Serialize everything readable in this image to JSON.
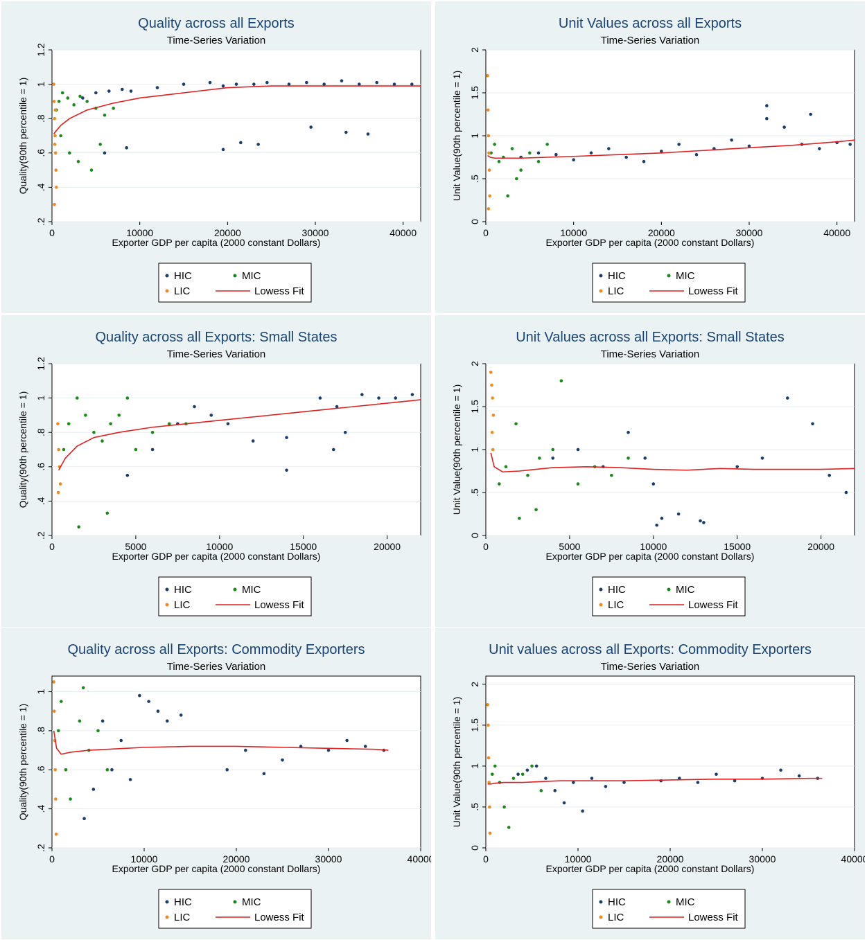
{
  "colors": {
    "HIC": "#1a3f6a",
    "MIC": "#1a8a1a",
    "LIC": "#f08a1c",
    "fit": "#e01f1f",
    "panel_bg": "#eaf2f3"
  },
  "chart_data": [
    {
      "type": "scatter",
      "title": "Quality across all Exports",
      "subtitle": "Time-Series Variation",
      "xlabel": "Exporter GDP per capita (2000 constant Dollars)",
      "ylabel": "Quality(90th percentile = 1)",
      "xlim": [
        0,
        42000
      ],
      "ylim": [
        0.2,
        1.2
      ],
      "xticks": [
        0,
        10000,
        20000,
        30000,
        40000
      ],
      "xtick_labels": [
        "0",
        "10000",
        "20000",
        "30000",
        "40000"
      ],
      "yticks": [
        0.2,
        0.4,
        0.6,
        0.8,
        1.0,
        1.2
      ],
      "ytick_labels": [
        ".2",
        ".4",
        ".6",
        ".8",
        "1",
        "1.2"
      ],
      "grid": true,
      "legend_position": "bottom",
      "legend": [
        "HIC",
        "MIC",
        "LIC",
        "Lowess Fit"
      ],
      "series": [
        {
          "name": "HIC",
          "x": [
            3500,
            5000,
            6500,
            8000,
            9000,
            12000,
            15000,
            18000,
            19500,
            21000,
            23000,
            24500,
            27000,
            29000,
            31000,
            33000,
            35000,
            37000,
            39000,
            41000,
            6000,
            8500,
            19500,
            21500,
            23500,
            29500,
            33500,
            36000
          ],
          "y": [
            0.92,
            0.95,
            0.96,
            0.97,
            0.96,
            0.98,
            1.0,
            1.01,
            0.99,
            1.0,
            1.0,
            1.01,
            1.0,
            1.01,
            1.0,
            1.02,
            1.0,
            1.01,
            1.0,
            1.0,
            0.6,
            0.63,
            0.62,
            0.66,
            0.65,
            0.75,
            0.72,
            0.71
          ]
        },
        {
          "name": "MIC",
          "x": [
            500,
            800,
            1200,
            1800,
            2500,
            3200,
            4000,
            5000,
            6000,
            7000,
            1000,
            2000,
            3000,
            4500,
            5500
          ],
          "y": [
            0.85,
            0.9,
            0.95,
            0.92,
            0.88,
            0.93,
            0.9,
            0.86,
            0.82,
            0.86,
            0.7,
            0.6,
            0.55,
            0.5,
            0.65
          ]
        },
        {
          "name": "LIC",
          "x": [
            200,
            250,
            300,
            350,
            400,
            450,
            500,
            280,
            320,
            380
          ],
          "y": [
            1.0,
            0.9,
            0.8,
            0.7,
            0.6,
            0.5,
            0.4,
            0.3,
            0.65,
            0.85
          ]
        },
        {
          "name": "Lowess Fit",
          "x": [
            200,
            500,
            1000,
            2000,
            4000,
            7000,
            10000,
            15000,
            20000,
            25000,
            30000,
            35000,
            40000,
            42000
          ],
          "y": [
            0.71,
            0.73,
            0.76,
            0.8,
            0.85,
            0.89,
            0.92,
            0.95,
            0.98,
            0.99,
            0.99,
            0.99,
            0.99,
            0.99
          ]
        }
      ]
    },
    {
      "type": "scatter",
      "title": "Unit Values across all Exports",
      "subtitle": "Time-Series Variation",
      "xlabel": "Exporter GDP per capita (2000 constant Dollars)",
      "ylabel": "Unit Value(90th percentile = 1)",
      "xlim": [
        0,
        42000
      ],
      "ylim": [
        0,
        2
      ],
      "xticks": [
        0,
        10000,
        20000,
        30000,
        40000
      ],
      "xtick_labels": [
        "0",
        "10000",
        "20000",
        "30000",
        "40000"
      ],
      "yticks": [
        0,
        0.5,
        1,
        1.5,
        2
      ],
      "ytick_labels": [
        "0",
        ".5",
        "1",
        "1.5",
        "2"
      ],
      "grid": true,
      "legend_position": "bottom",
      "legend": [
        "HIC",
        "MIC",
        "LIC",
        "Lowess Fit"
      ],
      "series": [
        {
          "name": "HIC",
          "x": [
            4000,
            6000,
            8000,
            10000,
            12000,
            14000,
            16000,
            18000,
            20000,
            22000,
            24000,
            26000,
            28000,
            30000,
            32000,
            34000,
            36000,
            38000,
            40000,
            41500,
            32000,
            37000
          ],
          "y": [
            0.75,
            0.8,
            0.78,
            0.72,
            0.8,
            0.85,
            0.75,
            0.7,
            0.82,
            0.9,
            0.78,
            0.85,
            0.95,
            0.88,
            1.2,
            1.1,
            0.9,
            0.85,
            0.92,
            0.9,
            1.35,
            1.25
          ]
        },
        {
          "name": "MIC",
          "x": [
            600,
            1000,
            1500,
            2000,
            3000,
            4000,
            5000,
            6000,
            7000,
            2500,
            3500
          ],
          "y": [
            0.8,
            0.9,
            0.7,
            0.75,
            0.85,
            0.6,
            0.8,
            0.7,
            0.9,
            0.3,
            0.5
          ]
        },
        {
          "name": "LIC",
          "x": [
            200,
            250,
            300,
            350,
            400,
            450,
            300
          ],
          "y": [
            1.7,
            1.3,
            1.0,
            0.8,
            0.6,
            0.3,
            0.15
          ]
        },
        {
          "name": "Lowess Fit",
          "x": [
            200,
            500,
            1000,
            2000,
            4000,
            7000,
            10000,
            15000,
            20000,
            25000,
            30000,
            35000,
            40000,
            42000
          ],
          "y": [
            0.77,
            0.75,
            0.74,
            0.74,
            0.74,
            0.75,
            0.76,
            0.78,
            0.8,
            0.83,
            0.86,
            0.89,
            0.93,
            0.95
          ]
        }
      ]
    },
    {
      "type": "scatter",
      "title": "Quality across all Exports: Small States",
      "subtitle": "Time-Series Variation",
      "xlabel": "Exporter GDP per capita (2000 constant Dollars)",
      "ylabel": "Quality(90th percentile = 1)",
      "xlim": [
        0,
        22000
      ],
      "ylim": [
        0.2,
        1.2
      ],
      "xticks": [
        0,
        5000,
        10000,
        15000,
        20000
      ],
      "xtick_labels": [
        "0",
        "5000",
        "10000",
        "15000",
        "20000"
      ],
      "yticks": [
        0.2,
        0.4,
        0.6,
        0.8,
        1.0,
        1.2
      ],
      "ytick_labels": [
        ".2",
        ".4",
        ".6",
        ".8",
        "1",
        "1.2"
      ],
      "grid": true,
      "legend_position": "bottom",
      "legend": [
        "HIC",
        "MIC",
        "LIC",
        "Lowess Fit"
      ],
      "series": [
        {
          "name": "HIC",
          "x": [
            4500,
            6000,
            7500,
            8500,
            9500,
            10500,
            12000,
            14000,
            16000,
            17000,
            18500,
            19500,
            20500,
            21500,
            14000,
            16800,
            17500
          ],
          "y": [
            0.55,
            0.7,
            0.85,
            0.95,
            0.9,
            0.85,
            0.75,
            0.58,
            1.0,
            0.95,
            1.02,
            1.0,
            1.0,
            1.02,
            0.77,
            0.7,
            0.8
          ]
        },
        {
          "name": "MIC",
          "x": [
            700,
            1000,
            1500,
            2000,
            2500,
            3000,
            3500,
            4000,
            4500,
            5000,
            6000,
            7000,
            8000,
            1600,
            3300
          ],
          "y": [
            0.7,
            0.85,
            1.0,
            0.9,
            0.8,
            0.75,
            0.85,
            0.9,
            1.0,
            0.7,
            0.8,
            0.85,
            0.85,
            0.25,
            0.33
          ]
        },
        {
          "name": "LIC",
          "x": [
            350,
            400,
            450,
            500,
            380
          ],
          "y": [
            0.85,
            0.7,
            0.6,
            0.5,
            0.45
          ]
        },
        {
          "name": "Lowess Fit",
          "x": [
            400,
            800,
            1500,
            2500,
            4000,
            6000,
            8000,
            10000,
            12000,
            14000,
            16000,
            18000,
            20000,
            22000
          ],
          "y": [
            0.58,
            0.65,
            0.72,
            0.77,
            0.8,
            0.83,
            0.85,
            0.87,
            0.89,
            0.91,
            0.93,
            0.95,
            0.97,
            0.99
          ]
        }
      ]
    },
    {
      "type": "scatter",
      "title": "Unit Values across all Exports: Small States",
      "subtitle": "Time-Series Variation",
      "xlabel": "Exporter GDP per capita (2000 constant Dollars)",
      "ylabel": "Unit Value(90th percentile = 1)",
      "xlim": [
        0,
        22000
      ],
      "ylim": [
        0,
        2
      ],
      "xticks": [
        0,
        5000,
        10000,
        15000,
        20000
      ],
      "xtick_labels": [
        "0",
        "5000",
        "10000",
        "15000",
        "20000"
      ],
      "yticks": [
        0,
        0.5,
        1,
        1.5,
        2
      ],
      "ytick_labels": [
        "0",
        ".5",
        "1",
        "1.5",
        "2"
      ],
      "grid": true,
      "legend_position": "bottom",
      "legend": [
        "HIC",
        "MIC",
        "LIC",
        "Lowess Fit"
      ],
      "series": [
        {
          "name": "HIC",
          "x": [
            4000,
            5500,
            7000,
            8500,
            9500,
            10000,
            10500,
            11500,
            13000,
            15000,
            16500,
            18000,
            19500,
            20500,
            21500,
            10200,
            12800
          ],
          "y": [
            0.9,
            1.0,
            0.8,
            1.2,
            0.9,
            0.6,
            0.2,
            0.25,
            0.15,
            0.8,
            0.9,
            1.6,
            1.3,
            0.7,
            0.5,
            0.12,
            0.17
          ]
        },
        {
          "name": "MIC",
          "x": [
            800,
            1200,
            1800,
            2500,
            3200,
            4000,
            4500,
            5500,
            6500,
            7500,
            8500,
            2000,
            3000
          ],
          "y": [
            0.6,
            0.8,
            1.3,
            0.7,
            0.9,
            1.0,
            1.8,
            0.6,
            0.8,
            0.7,
            0.9,
            0.2,
            0.3
          ]
        },
        {
          "name": "LIC",
          "x": [
            300,
            350,
            400,
            450,
            380,
            420
          ],
          "y": [
            1.9,
            1.75,
            1.6,
            1.4,
            1.2,
            1.0
          ]
        },
        {
          "name": "Lowess Fit",
          "x": [
            300,
            500,
            1000,
            2000,
            4000,
            6000,
            8000,
            10000,
            12000,
            14000,
            16000,
            18000,
            20000,
            22000
          ],
          "y": [
            0.96,
            0.8,
            0.74,
            0.75,
            0.79,
            0.8,
            0.79,
            0.77,
            0.76,
            0.78,
            0.77,
            0.77,
            0.77,
            0.78
          ]
        }
      ]
    },
    {
      "type": "scatter",
      "title": "Quality across all Exports: Commodity Exporters",
      "subtitle": "Time-Series Variation",
      "xlabel": "Exporter GDP per capita (2000 constant Dollars)",
      "ylabel": "Quality(90th percentile = 1)",
      "xlim": [
        0,
        40000
      ],
      "ylim": [
        0.2,
        1.08
      ],
      "xticks": [
        0,
        10000,
        20000,
        30000,
        40000
      ],
      "xtick_labels": [
        "0",
        "10000",
        "20000",
        "30000",
        "40000"
      ],
      "yticks": [
        0.2,
        0.4,
        0.6,
        0.8,
        1.0
      ],
      "ytick_labels": [
        ".2",
        ".4",
        ".6",
        ".8",
        "1"
      ],
      "grid": true,
      "legend_position": "bottom",
      "legend": [
        "HIC",
        "MIC",
        "LIC",
        "Lowess Fit"
      ],
      "series": [
        {
          "name": "HIC",
          "x": [
            3500,
            4500,
            5500,
            6500,
            7500,
            8500,
            9500,
            10500,
            11500,
            12500,
            14000,
            19000,
            21000,
            23000,
            25000,
            27000,
            30000,
            32000,
            34000,
            36000
          ],
          "y": [
            0.35,
            0.5,
            0.85,
            0.6,
            0.75,
            0.55,
            0.98,
            0.95,
            0.9,
            0.85,
            0.88,
            0.6,
            0.7,
            0.58,
            0.65,
            0.72,
            0.7,
            0.75,
            0.72,
            0.7
          ]
        },
        {
          "name": "MIC",
          "x": [
            700,
            1000,
            1500,
            2000,
            3000,
            4000,
            5000,
            6000,
            3400
          ],
          "y": [
            0.8,
            0.95,
            0.6,
            0.45,
            0.85,
            0.7,
            0.8,
            0.6,
            1.02
          ]
        },
        {
          "name": "LIC",
          "x": [
            200,
            250,
            300,
            350,
            400,
            450
          ],
          "y": [
            1.05,
            0.9,
            0.75,
            0.6,
            0.45,
            0.27
          ]
        },
        {
          "name": "Lowess Fit",
          "x": [
            200,
            500,
            1000,
            2000,
            4000,
            6000,
            8000,
            10000,
            15000,
            20000,
            25000,
            30000,
            35000,
            36500
          ],
          "y": [
            0.8,
            0.71,
            0.68,
            0.69,
            0.7,
            0.705,
            0.71,
            0.715,
            0.72,
            0.72,
            0.715,
            0.71,
            0.705,
            0.7
          ]
        }
      ]
    },
    {
      "type": "scatter",
      "title": "Unit values across all Exports: Commodity Exporters",
      "subtitle": "Time-Series Variation",
      "xlabel": "Exporter GDP per capita (2000 constant Dollars)",
      "ylabel": "Unit Value(90th percentile = 1)",
      "xlim": [
        0,
        40000
      ],
      "ylim": [
        0,
        2.1
      ],
      "xticks": [
        0,
        10000,
        20000,
        30000,
        40000
      ],
      "xtick_labels": [
        "0",
        "10000",
        "20000",
        "30000",
        "40000"
      ],
      "yticks": [
        0,
        0.5,
        1,
        1.5,
        2
      ],
      "ytick_labels": [
        "0",
        ".5",
        "1",
        "1.5",
        "2"
      ],
      "grid": true,
      "legend_position": "bottom",
      "legend": [
        "HIC",
        "MIC",
        "LIC",
        "Lowess Fit"
      ],
      "series": [
        {
          "name": "HIC",
          "x": [
            3500,
            4500,
            5500,
            6500,
            7500,
            8500,
            9500,
            10500,
            11500,
            13000,
            15000,
            19000,
            21000,
            23000,
            25000,
            27000,
            30000,
            32000,
            34000,
            36000
          ],
          "y": [
            0.9,
            0.95,
            1.0,
            0.85,
            0.7,
            0.55,
            0.8,
            0.45,
            0.85,
            0.75,
            0.8,
            0.82,
            0.85,
            0.8,
            0.9,
            0.82,
            0.85,
            0.95,
            0.88,
            0.85
          ]
        },
        {
          "name": "MIC",
          "x": [
            700,
            1000,
            1500,
            2000,
            3000,
            4000,
            5000,
            6000,
            2500
          ],
          "y": [
            0.9,
            1.0,
            0.8,
            0.5,
            0.85,
            0.9,
            1.0,
            0.7,
            0.25
          ]
        },
        {
          "name": "LIC",
          "x": [
            200,
            250,
            300,
            350,
            400,
            450
          ],
          "y": [
            1.75,
            1.5,
            1.1,
            0.8,
            0.5,
            0.18
          ]
        },
        {
          "name": "Lowess Fit",
          "x": [
            200,
            500,
            1000,
            2000,
            4000,
            6000,
            8000,
            10000,
            15000,
            20000,
            25000,
            30000,
            35000,
            36500
          ],
          "y": [
            0.78,
            0.78,
            0.79,
            0.8,
            0.8,
            0.81,
            0.82,
            0.82,
            0.82,
            0.83,
            0.84,
            0.84,
            0.85,
            0.85
          ]
        }
      ]
    }
  ]
}
